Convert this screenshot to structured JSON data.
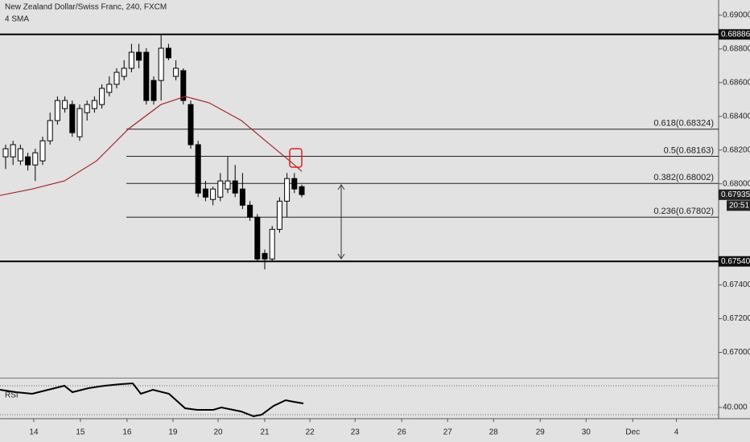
{
  "chart_data": {
    "type": "candlestick",
    "title": "New Zealand Dollar/Swiss Franc, 240, FXCM",
    "indicator_label": "4 SMA",
    "xlim": [
      -0.76,
      96.3
    ],
    "ylim": [
      0.6685,
      0.6909
    ],
    "yticks": [
      {
        "value": 0.69,
        "label": "0.69000"
      },
      {
        "value": 0.688,
        "label": "0.68800"
      },
      {
        "value": 0.686,
        "label": "0.68600"
      },
      {
        "value": 0.684,
        "label": "0.68400"
      },
      {
        "value": 0.682,
        "label": "0.68200"
      },
      {
        "value": 0.68,
        "label": "0.68000"
      },
      {
        "value": 0.674,
        "label": "0.67400"
      },
      {
        "value": 0.672,
        "label": "0.67200"
      },
      {
        "value": 0.67,
        "label": "0.67000"
      }
    ],
    "xticks": [
      {
        "value": 3.8,
        "label": "14"
      },
      {
        "value": 10.1,
        "label": "15"
      },
      {
        "value": 16.4,
        "label": "16"
      },
      {
        "value": 22.6,
        "label": "19"
      },
      {
        "value": 28.7,
        "label": "20"
      },
      {
        "value": 35,
        "label": "21"
      },
      {
        "value": 41.1,
        "label": "22"
      },
      {
        "value": 47.2,
        "label": "23"
      },
      {
        "value": 53.5,
        "label": "26"
      },
      {
        "value": 59.7,
        "label": "27"
      },
      {
        "value": 65.9,
        "label": "28"
      },
      {
        "value": 72.2,
        "label": "29"
      },
      {
        "value": 78.4,
        "label": "30"
      },
      {
        "value": 84.7,
        "label": "Dec"
      },
      {
        "value": 90.6,
        "label": "4"
      }
    ],
    "candles": {
      "up_color": "#ffffff",
      "down_color": "#000000",
      "open": [
        0.6816,
        0.6816,
        0.68136,
        0.6816,
        0.68112,
        0.68136,
        0.68255,
        0.68375,
        0.68446,
        0.6847,
        0.68279,
        0.68422,
        0.68446,
        0.6847,
        0.68542,
        0.6859,
        0.68637,
        0.68685,
        0.6878,
        0.6878,
        0.68613,
        0.68613,
        0.68804,
        0.68637,
        0.68671,
        0.6847,
        0.68232,
        0.67969,
        0.67907,
        0.67921,
        0.67969,
        0.68017,
        0.67969,
        0.67873,
        0.67802,
        0.67587,
        0.67554,
        0.6773,
        0.67897,
        0.68031,
        0.67983
      ],
      "high": [
        0.68232,
        0.68255,
        0.68232,
        0.68184,
        0.68208,
        0.68279,
        0.68422,
        0.68518,
        0.68518,
        0.68494,
        0.6847,
        0.68494,
        0.68518,
        0.6859,
        0.68637,
        0.68685,
        0.68733,
        0.6883,
        0.6883,
        0.68804,
        0.68637,
        0.68886,
        0.6883,
        0.68733,
        0.68685,
        0.68494,
        0.68255,
        0.68017,
        0.67983,
        0.68064,
        0.6816,
        0.68112,
        0.68064,
        0.67897,
        0.6782,
        0.6761,
        0.6775,
        0.6792,
        0.68064,
        0.68064,
        0.67995
      ],
      "low": [
        0.68088,
        0.68112,
        0.68112,
        0.68079,
        0.68017,
        0.68112,
        0.68232,
        0.68351,
        0.68422,
        0.68279,
        0.68255,
        0.68375,
        0.68422,
        0.68446,
        0.68518,
        0.68566,
        0.68613,
        0.68661,
        0.68685,
        0.6847,
        0.6847,
        0.68494,
        0.68733,
        0.68613,
        0.6847,
        0.68208,
        0.67921,
        0.67897,
        0.67873,
        0.67897,
        0.67945,
        0.67921,
        0.6785,
        0.6778,
        0.6754,
        0.67492,
        0.6754,
        0.6771,
        0.67802,
        0.67945,
        0.6792
      ],
      "close": [
        0.68208,
        0.68232,
        0.68208,
        0.68112,
        0.68184,
        0.68255,
        0.68375,
        0.68494,
        0.68494,
        0.68303,
        0.68446,
        0.6847,
        0.68494,
        0.68566,
        0.6859,
        0.68661,
        0.68685,
        0.6878,
        0.68733,
        0.68494,
        0.68494,
        0.68804,
        0.68747,
        0.68685,
        0.68494,
        0.68232,
        0.67945,
        0.67921,
        0.67969,
        0.68017,
        0.68017,
        0.67945,
        0.67873,
        0.67802,
        0.67554,
        0.67554,
        0.6773,
        0.67897,
        0.68031,
        0.67969,
        0.67936
      ]
    },
    "sma": {
      "color": "#a3262a",
      "x": [
        -0.76,
        3.59,
        7.93,
        12.28,
        16.63,
        20.98,
        24.24,
        27.5,
        31.85,
        35.1,
        38.37,
        40
      ],
      "values": [
        0.67931,
        0.67969,
        0.68017,
        0.68136,
        0.68327,
        0.6847,
        0.68518,
        0.6848,
        0.68375,
        0.68255,
        0.68136,
        0.68074
      ]
    },
    "fib_levels": [
      {
        "value": 0.68324,
        "label": "0.618(0.68324)"
      },
      {
        "value": 0.68163,
        "label": "0.5(0.68163)"
      },
      {
        "value": 0.68002,
        "label": "0.382(0.68002)"
      },
      {
        "value": 0.67802,
        "label": "0.236(0.67802)"
      }
    ],
    "hlines": [
      {
        "value": 0.68886,
        "label": "0.68886"
      },
      {
        "value": 0.6754,
        "label": "0.67540"
      }
    ],
    "last_price": {
      "value": 0.67935,
      "label": "0.67935",
      "countdown": "20:51"
    },
    "rsi": {
      "label": "RSI",
      "color": "#000000",
      "ylim": [
        25.6,
        81.1
      ],
      "bands": [
        30,
        70
      ],
      "yticks": [
        {
          "value": 40,
          "label": "40.000"
        }
      ],
      "x": [
        -0.76,
        1.41,
        3.59,
        5.76,
        7.93,
        9.02,
        11.2,
        13.37,
        15.54,
        17.17,
        18.26,
        19.89,
        22.07,
        24.24,
        25.87,
        28.04,
        29.13,
        31.85,
        33.48,
        34.57,
        36.2,
        37.83,
        38.91,
        40.22
      ],
      "values": [
        64.4,
        61.1,
        58.9,
        64.4,
        70,
        61.1,
        66.7,
        70,
        72.2,
        73.3,
        58.9,
        64.4,
        58.9,
        38.9,
        36.7,
        36.7,
        40,
        34.4,
        27.8,
        30,
        42.2,
        50,
        47.8,
        45.6
      ]
    }
  }
}
